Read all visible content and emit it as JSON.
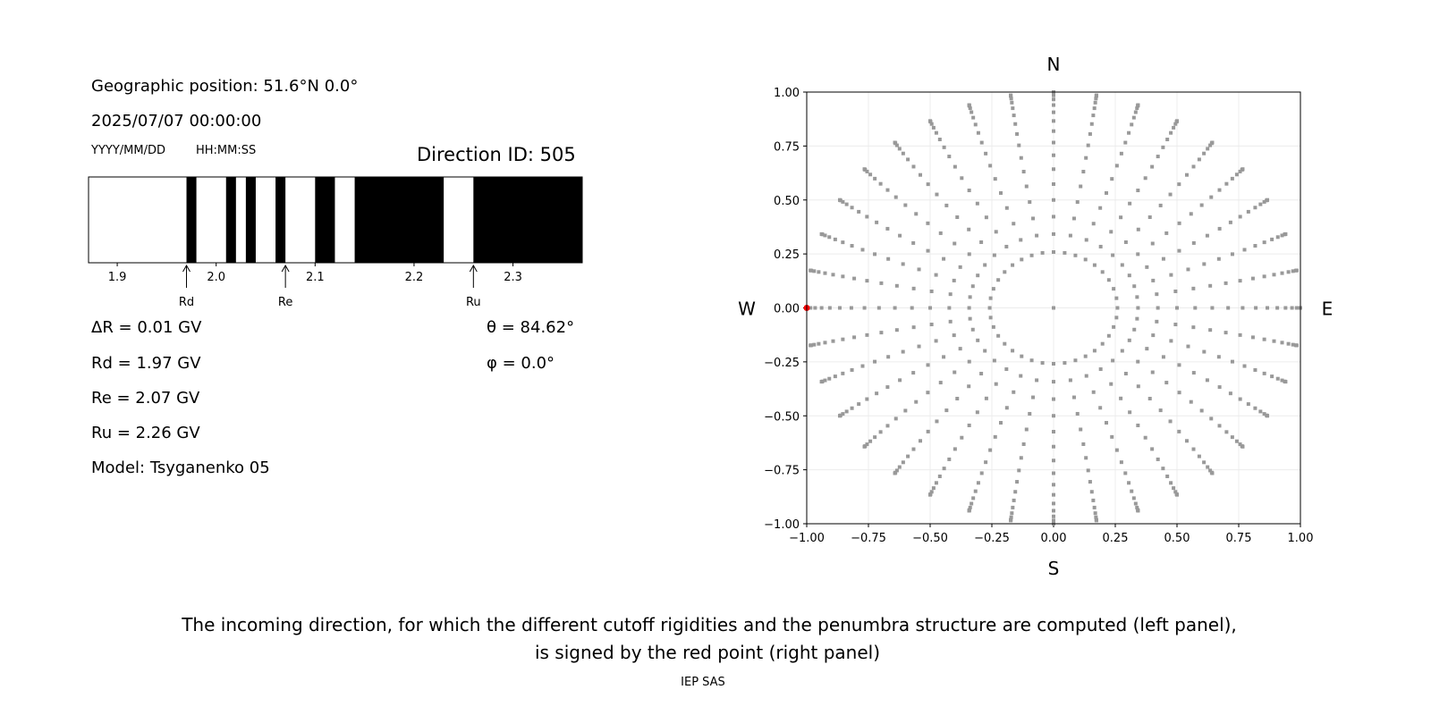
{
  "left_panel": {
    "geo_position": "Geographic position: 51.6°N 0.0°",
    "datetime": "2025/07/07 00:00:00",
    "date_format": "YYYY/MM/DD",
    "time_format": "HH:MM:SS",
    "direction_id": "Direction ID: 505",
    "delta_r": "ΔR = 0.01 GV",
    "rd": "Rd = 1.97 GV",
    "re": "Re = 2.07 GV",
    "ru": "Ru = 2.26 GV",
    "model": "Model: Tsyganenko 05",
    "theta": "θ = 84.62°",
    "phi": "φ = 0.0°"
  },
  "chart_data": [
    {
      "type": "bar",
      "xlim": [
        1.871,
        2.37
      ],
      "xticks": [
        "1.9",
        "2.0",
        "2.1",
        "2.2",
        "2.3"
      ],
      "xtick_values": [
        1.9,
        2.0,
        2.1,
        2.2,
        2.3
      ],
      "forbidden_color": "#000000",
      "allowed_color": "#ffffff",
      "forbidden_intervals": [
        [
          1.97,
          1.98
        ],
        [
          2.01,
          2.02
        ],
        [
          2.03,
          2.04
        ],
        [
          2.06,
          2.07
        ],
        [
          2.1,
          2.12
        ],
        [
          2.14,
          2.23
        ],
        [
          2.26,
          2.37
        ]
      ],
      "markers": [
        {
          "label": "Rd",
          "value": 1.97
        },
        {
          "label": "Re",
          "value": 2.07
        },
        {
          "label": "Ru",
          "value": 2.26
        }
      ]
    },
    {
      "type": "scatter",
      "xlim": [
        -1,
        1
      ],
      "ylim": [
        -1,
        1
      ],
      "ticks": [
        "−1.00",
        "−0.75",
        "−0.50",
        "−0.25",
        "0.00",
        "0.25",
        "0.50",
        "0.75",
        "1.00"
      ],
      "tick_values": [
        -1,
        -0.75,
        -0.5,
        -0.25,
        0,
        0.25,
        0.5,
        0.75,
        1
      ],
      "grid": true,
      "directions": {
        "top": "N",
        "bottom": "S",
        "left": "W",
        "right": "E"
      },
      "point_color": "#999999",
      "highlight_color": "#ff0000",
      "grid_azimuths_deg_step": 10,
      "grid_zenith_deg": [
        0,
        15,
        20,
        25,
        30,
        35,
        40,
        45,
        50,
        55,
        60,
        65,
        70,
        75,
        80,
        85,
        88,
        90
      ],
      "highlight_point": [
        -1.0,
        0.0
      ]
    }
  ],
  "caption": {
    "line1": "The incoming direction, for which the different cutoff rigidities and the penumbra structure are computed (left panel),",
    "line2": "is signed by the red point (right panel)",
    "credit": "IEP SAS"
  }
}
